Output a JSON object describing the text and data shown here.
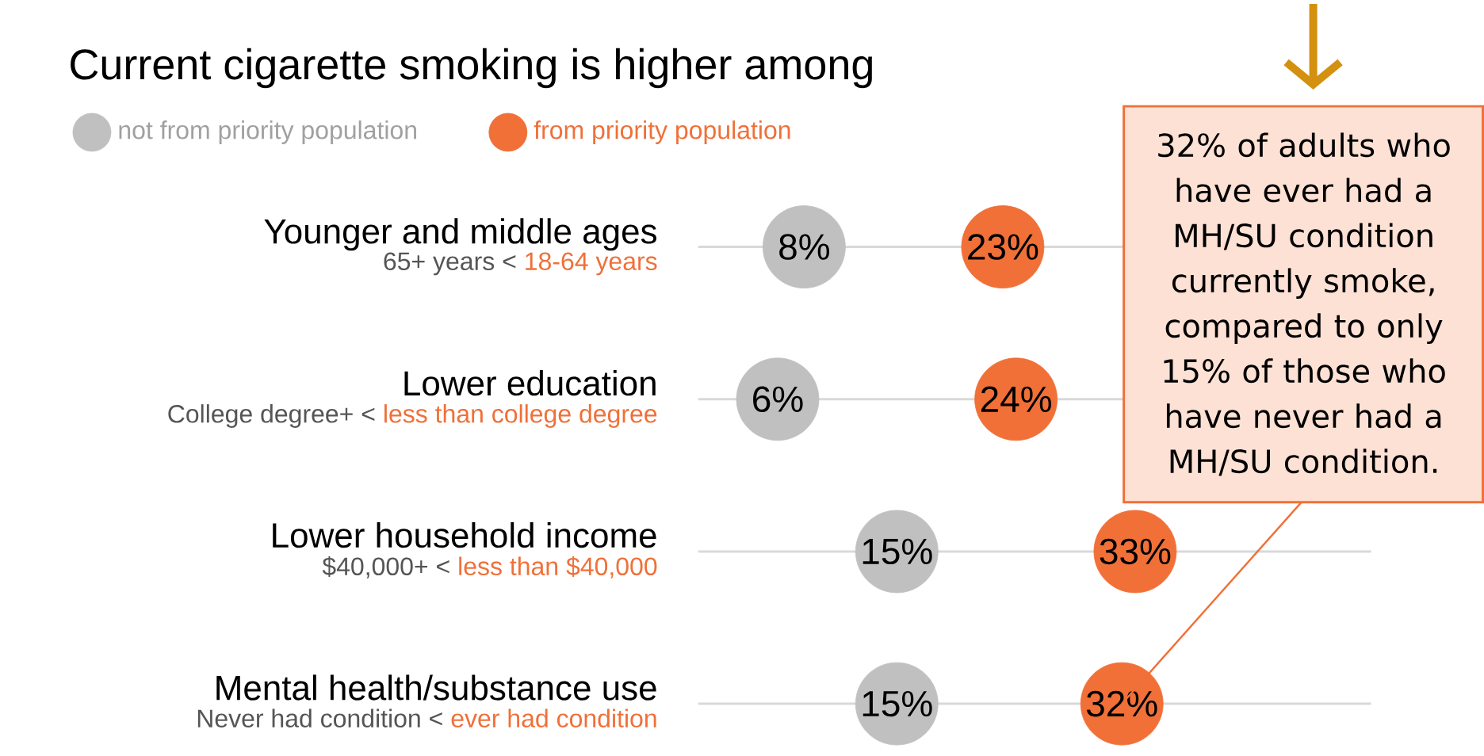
{
  "chart_data": {
    "type": "scatter",
    "orientation": "horizontal",
    "title": "Current cigarette smoking is higher among",
    "categories": [
      "Younger and middle ages",
      "Lower education",
      "Lower household income",
      "Mental health/substance use"
    ],
    "series": [
      {
        "name": "not from priority population",
        "color": "#c0c0c0",
        "values": [
          8,
          6,
          15,
          15
        ],
        "value_labels": [
          "8%",
          "6%",
          "15%",
          "15%"
        ]
      },
      {
        "name": "from priority population",
        "color": "#f07038",
        "values": [
          23,
          24,
          33,
          32
        ],
        "value_labels": [
          "23%",
          "24%",
          "33%",
          "32%"
        ]
      }
    ],
    "annotations": [
      "65+ years <",
      "18-64 years",
      "College degree+ <",
      "less than college degree",
      "$40,000+ <",
      "less than $40,000",
      "Never had condition <",
      "ever had condition",
      "32% of adults who have ever had a MH/SU condition currently smoke, compared to only 15% of those who have never had a MH/SU condition."
    ],
    "grid": "y",
    "legend": "top left",
    "marker": "circle"
  }
}
